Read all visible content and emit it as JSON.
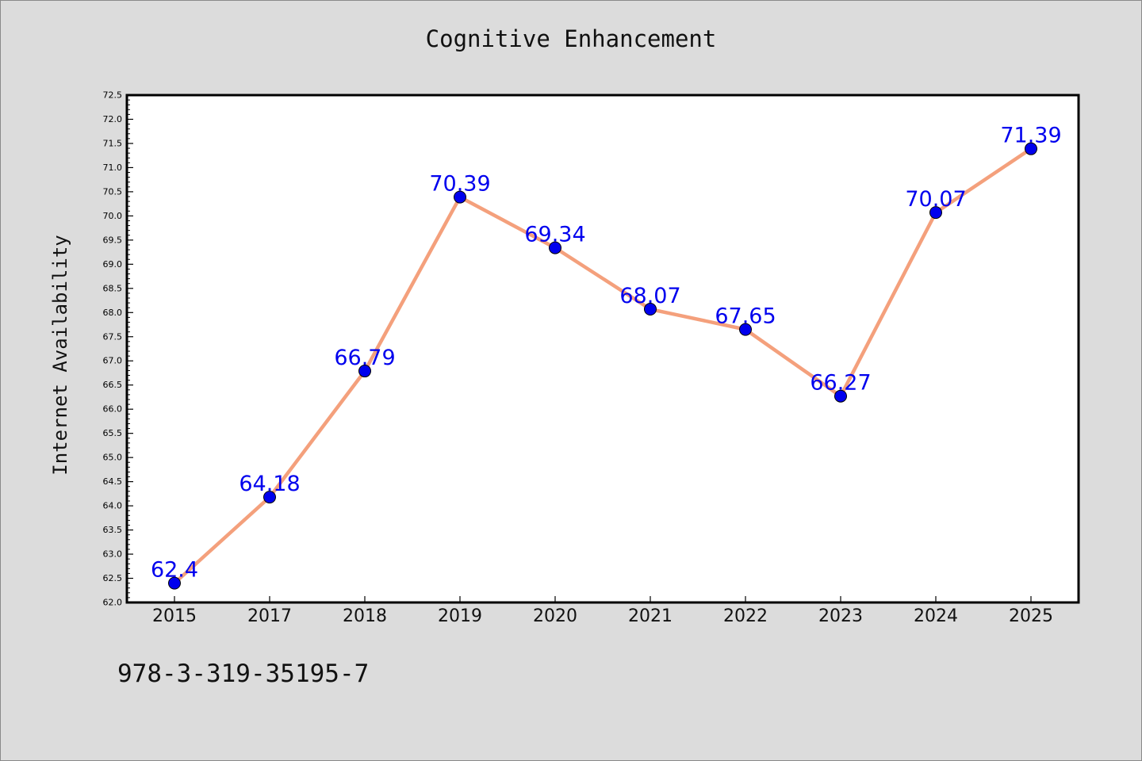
{
  "chart_data": {
    "type": "line",
    "title": "Cognitive Enhancement",
    "ylabel": "Internet Availability",
    "xlabel": "",
    "categories": [
      "2015",
      "2017",
      "2018",
      "2019",
      "2020",
      "2021",
      "2022",
      "2023",
      "2024",
      "2025"
    ],
    "series": [
      {
        "values": [
          62.4,
          64.18,
          66.79,
          70.39,
          69.34,
          68.07,
          67.65,
          66.27,
          70.07,
          71.39
        ],
        "data_labels": [
          "62.4",
          "64.18",
          "66.79",
          "70.39",
          "69.34",
          "68.07",
          "67.65",
          "66.27",
          "70.07",
          "71.39"
        ],
        "line_color": "#f4a07c",
        "marker_color": "#0000ee",
        "label_color": "#0000ee"
      }
    ],
    "ylim": [
      62.0,
      72.5
    ],
    "yticks": [
      "62.0",
      "62.5",
      "63.0",
      "63.5",
      "64.0",
      "64.5",
      "65.0",
      "65.5",
      "66.0",
      "66.5",
      "67.0",
      "67.5",
      "68.0",
      "68.5",
      "69.0",
      "69.5",
      "70.0",
      "70.5",
      "71.0",
      "71.5",
      "72.0",
      "72.5"
    ],
    "grid": false,
    "legend": "none"
  },
  "footer": {
    "code": "978-3-319-35195-7"
  }
}
